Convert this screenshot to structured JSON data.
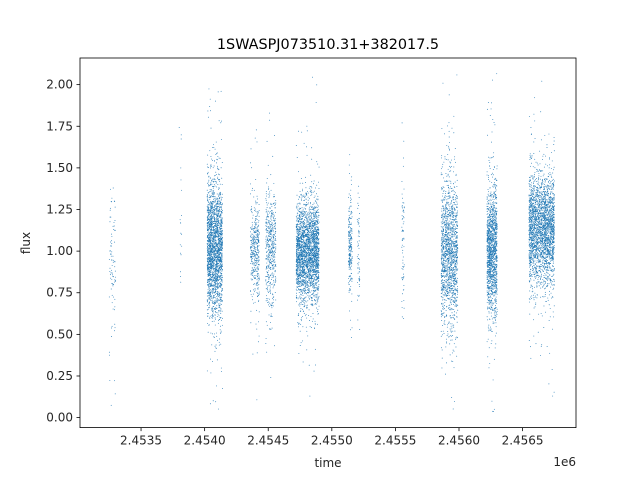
{
  "chart_data": {
    "type": "scatter",
    "title": "1SWASPJ073510.31+382017.5",
    "xlabel": "time",
    "ylabel": "flux",
    "x_offset_label": "1e6",
    "xlim": [
      2.45302,
      2.45692
    ],
    "ylim": [
      -0.06,
      2.16
    ],
    "xticks": [
      2.4535,
      2.454,
      2.4545,
      2.455,
      2.4555,
      2.456,
      2.4565
    ],
    "xtick_labels": [
      "2.4535",
      "2.4540",
      "2.4545",
      "2.4550",
      "2.4555",
      "2.4560",
      "2.4565"
    ],
    "yticks": [
      0.0,
      0.25,
      0.5,
      0.75,
      1.0,
      1.25,
      1.5,
      1.75,
      2.0
    ],
    "ytick_labels": [
      "0.00",
      "0.25",
      "0.50",
      "0.75",
      "1.00",
      "1.25",
      "1.50",
      "1.75",
      "2.00"
    ],
    "grid": false,
    "marker_color": "#1f77b4",
    "series": [
      {
        "clusters": [
          {
            "x_start": 2.45325,
            "x_end": 2.4533,
            "y_mean": 1.0,
            "y_spread": 0.22,
            "count": 90
          },
          {
            "x_start": 2.4538,
            "x_end": 2.45382,
            "y_mean": 1.1,
            "y_spread": 0.25,
            "count": 20
          },
          {
            "x_start": 2.45402,
            "x_end": 2.45414,
            "y_mean": 1.02,
            "y_spread": 0.2,
            "count": 2200
          },
          {
            "x_start": 2.45436,
            "x_end": 2.45443,
            "y_mean": 1.0,
            "y_spread": 0.15,
            "count": 400
          },
          {
            "x_start": 2.45448,
            "x_end": 2.45456,
            "y_mean": 1.0,
            "y_spread": 0.18,
            "count": 500
          },
          {
            "x_start": 2.45472,
            "x_end": 2.4549,
            "y_mean": 1.0,
            "y_spread": 0.15,
            "count": 2600
          },
          {
            "x_start": 2.45513,
            "x_end": 2.45516,
            "y_mean": 1.05,
            "y_spread": 0.14,
            "count": 220
          },
          {
            "x_start": 2.4552,
            "x_end": 2.45522,
            "y_mean": 1.0,
            "y_spread": 0.2,
            "count": 60
          },
          {
            "x_start": 2.45555,
            "x_end": 2.45557,
            "y_mean": 1.05,
            "y_spread": 0.2,
            "count": 70
          },
          {
            "x_start": 2.45586,
            "x_end": 2.45599,
            "y_mean": 1.0,
            "y_spread": 0.22,
            "count": 1500
          },
          {
            "x_start": 2.45622,
            "x_end": 2.4563,
            "y_mean": 1.0,
            "y_spread": 0.2,
            "count": 1400
          },
          {
            "x_start": 2.45655,
            "x_end": 2.45675,
            "y_mean": 1.12,
            "y_spread": 0.17,
            "count": 2600
          }
        ]
      }
    ]
  }
}
